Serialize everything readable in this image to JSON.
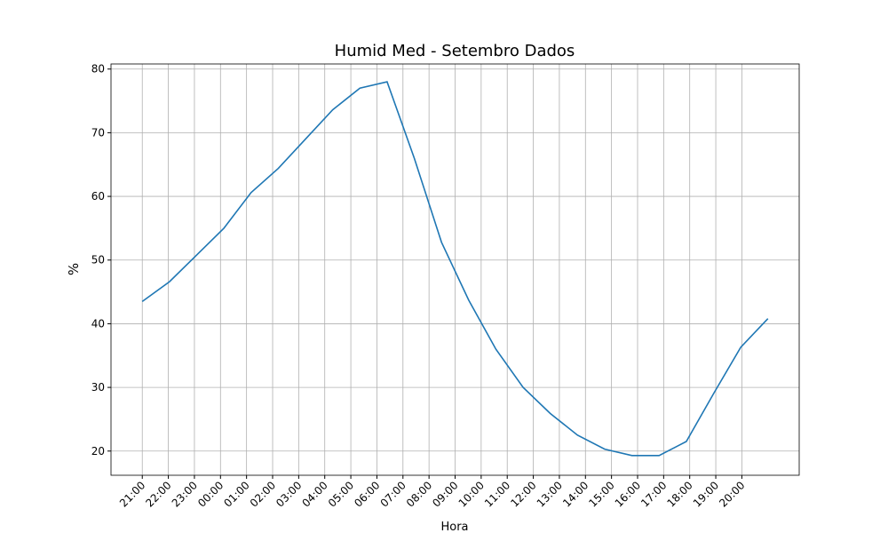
{
  "chart_data": {
    "type": "line",
    "title": "Humid Med - Setembro Dados",
    "xlabel": "Hora",
    "ylabel": "%",
    "x": [
      0,
      1,
      2,
      3,
      4,
      5,
      6,
      7,
      8,
      9,
      10,
      11,
      12,
      13,
      14,
      15,
      16,
      17,
      18,
      19,
      20,
      21,
      22,
      23
    ],
    "series": [
      {
        "name": "Humid Med",
        "color": "#1f77b4",
        "values": [
          43.5,
          46.6,
          50.8,
          55,
          60.6,
          64.4,
          69,
          73.6,
          77,
          78,
          66,
          52.8,
          43.7,
          36,
          30,
          25.9,
          22.5,
          20.3,
          19.3,
          19.3,
          21.5,
          29,
          36.3,
          40.8
        ]
      }
    ],
    "xlim": [
      -1.15,
      24.15
    ],
    "xticks": [
      {
        "value": 0,
        "label": "21:00"
      },
      {
        "value": 0.9583,
        "label": "22:00"
      },
      {
        "value": 1.9167,
        "label": "23:00"
      },
      {
        "value": 2.875,
        "label": "00:00"
      },
      {
        "value": 3.8333,
        "label": "01:00"
      },
      {
        "value": 4.7917,
        "label": "02:00"
      },
      {
        "value": 5.75,
        "label": "03:00"
      },
      {
        "value": 6.7083,
        "label": "04:00"
      },
      {
        "value": 7.6667,
        "label": "05:00"
      },
      {
        "value": 8.625,
        "label": "06:00"
      },
      {
        "value": 9.5833,
        "label": "07:00"
      },
      {
        "value": 10.5417,
        "label": "08:00"
      },
      {
        "value": 11.5,
        "label": "09:00"
      },
      {
        "value": 12.4583,
        "label": "10:00"
      },
      {
        "value": 13.4167,
        "label": "11:00"
      },
      {
        "value": 14.375,
        "label": "12:00"
      },
      {
        "value": 15.3333,
        "label": "13:00"
      },
      {
        "value": 16.2917,
        "label": "14:00"
      },
      {
        "value": 17.25,
        "label": "15:00"
      },
      {
        "value": 18.2083,
        "label": "16:00"
      },
      {
        "value": 19.1667,
        "label": "17:00"
      },
      {
        "value": 20.125,
        "label": "18:00"
      },
      {
        "value": 21.0833,
        "label": "19:00"
      },
      {
        "value": 22.0417,
        "label": "20:00"
      }
    ],
    "ylim": [
      16.2,
      80.8
    ],
    "yticks": [
      20,
      30,
      40,
      50,
      60,
      70,
      80
    ],
    "grid": true
  }
}
